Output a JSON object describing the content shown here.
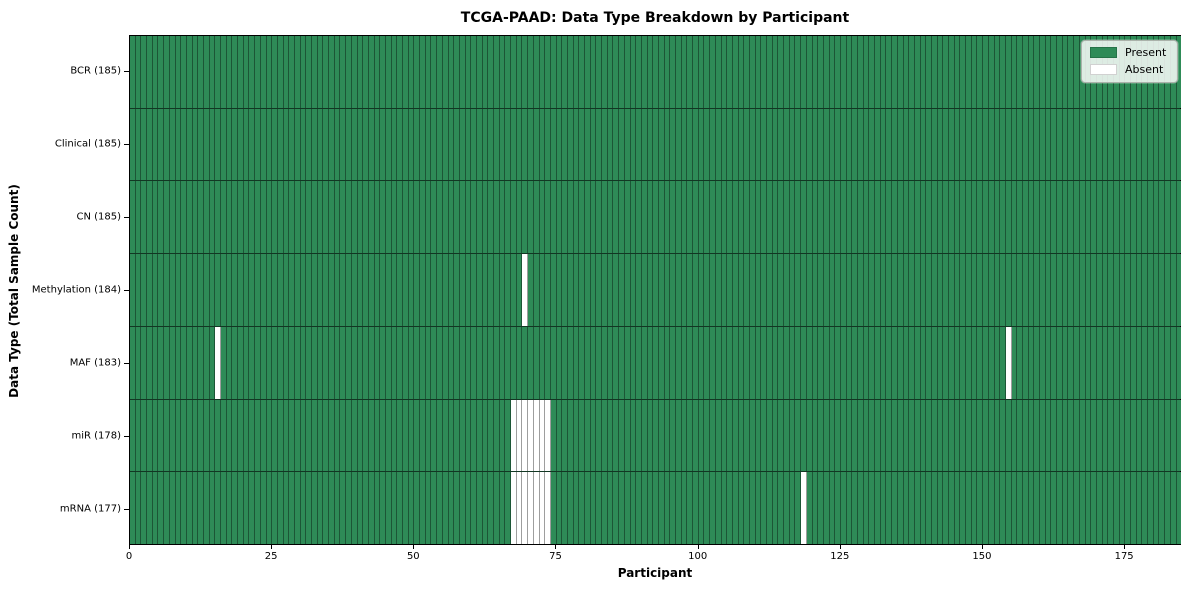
{
  "figure": {
    "title": "TCGA-PAAD: Data Type Breakdown by Participant",
    "xlabel": "Participant",
    "ylabel": "Data Type (Total Sample Count)"
  },
  "legend": {
    "items": [
      {
        "label": "Present",
        "color": "#2e8b57"
      },
      {
        "label": "Absent",
        "color": "#ffffff"
      }
    ]
  },
  "chart_data": {
    "type": "heatmap",
    "title": "TCGA-PAAD: Data Type Breakdown by Participant",
    "xlabel": "Participant",
    "ylabel": "Data Type (Total Sample Count)",
    "n_participants": 185,
    "xlim": [
      0,
      185
    ],
    "x_ticks": [
      0,
      25,
      50,
      75,
      100,
      125,
      150,
      175
    ],
    "grid": false,
    "legend_position": "upper right",
    "colors": {
      "present": "#2e8b57",
      "absent": "#ffffff",
      "cell_edge": "rgba(0,0,0,0.38)"
    },
    "value_labels": {
      "present": "Present",
      "absent": "Absent"
    },
    "rows": [
      {
        "label": "BCR (185)",
        "data_type": "BCR",
        "total": 185,
        "absent_participants": []
      },
      {
        "label": "Clinical (185)",
        "data_type": "Clinical",
        "total": 185,
        "absent_participants": []
      },
      {
        "label": "CN (185)",
        "data_type": "CN",
        "total": 185,
        "absent_participants": []
      },
      {
        "label": "Methylation (184)",
        "data_type": "Methylation",
        "total": 184,
        "absent_participants": [
          69
        ]
      },
      {
        "label": "MAF (183)",
        "data_type": "MAF",
        "total": 183,
        "absent_participants": [
          15,
          154
        ]
      },
      {
        "label": "miR (178)",
        "data_type": "miR",
        "total": 178,
        "absent_participants": [
          67,
          68,
          69,
          70,
          71,
          72,
          73
        ]
      },
      {
        "label": "mRNA (177)",
        "data_type": "mRNA",
        "total": 177,
        "absent_participants": [
          67,
          68,
          69,
          70,
          71,
          72,
          73,
          118
        ]
      }
    ]
  }
}
